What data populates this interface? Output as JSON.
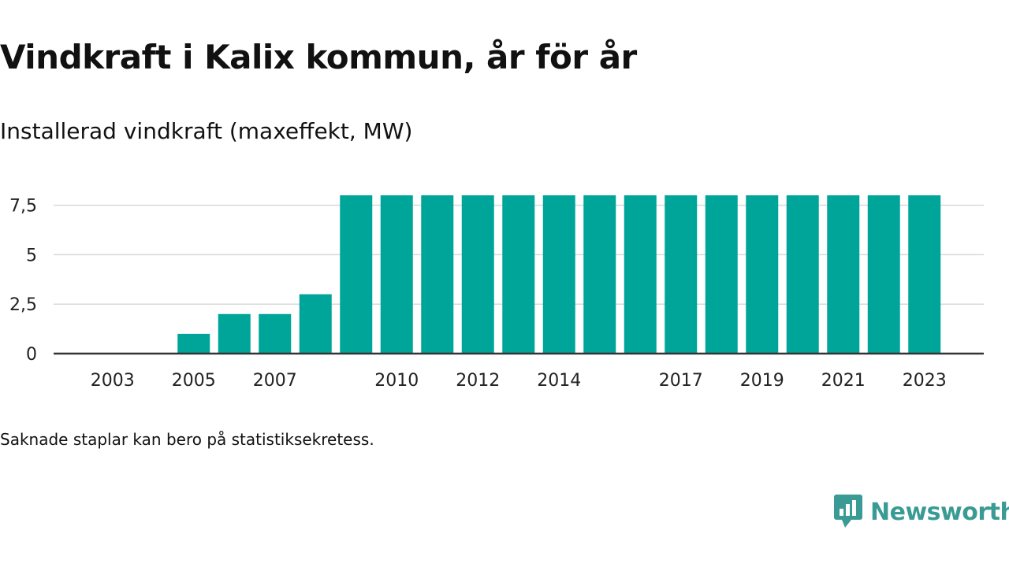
{
  "title": "Vindkraft i Kalix kommun, år för år",
  "subtitle": "Installerad vindkraft (maxeffekt, MW)",
  "footnote": "Saknade staplar kan bero på statistiksekretess.",
  "brand": "Newsworthy",
  "colors": {
    "bar": "#00a59a",
    "brand": "#3a9b94",
    "grid": "#d9d9d9",
    "axis": "#333333"
  },
  "chart_data": {
    "type": "bar",
    "categories": [
      "2003",
      "2004",
      "2005",
      "2006",
      "2007",
      "2008",
      "2009",
      "2010",
      "2011",
      "2012",
      "2013",
      "2014",
      "2015",
      "2016",
      "2017",
      "2018",
      "2019",
      "2020",
      "2021",
      "2022",
      "2023"
    ],
    "values": [
      0,
      0,
      1,
      2,
      2,
      3,
      8,
      8,
      8,
      8,
      8,
      8,
      8,
      8,
      8,
      8,
      8,
      8,
      8,
      8,
      8
    ],
    "x_tick_labels": [
      "2003",
      "2005",
      "2007",
      "2010",
      "2012",
      "2014",
      "2017",
      "2019",
      "2021",
      "2023"
    ],
    "y_ticks": [
      0,
      2.5,
      5,
      7.5
    ],
    "y_tick_labels": [
      "0",
      "2,5",
      "5",
      "7,5"
    ],
    "ylim": [
      0,
      8.2
    ],
    "grid": true,
    "legend": "none"
  }
}
